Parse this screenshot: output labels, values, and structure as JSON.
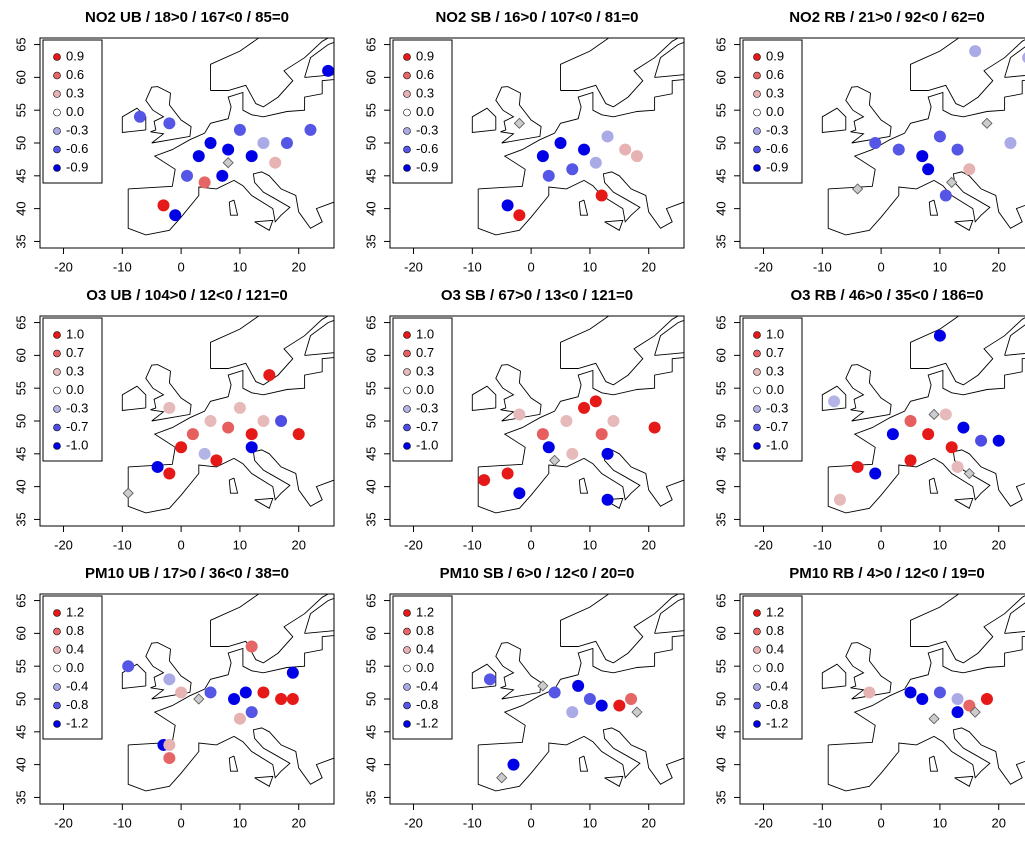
{
  "panels": [
    {
      "title": "NO2 UB / 18>0 / 167<0 / 85=0",
      "xlim": [
        -24,
        26
      ],
      "ylim": [
        34,
        66
      ],
      "xticks": [
        -20,
        -10,
        0,
        10,
        20
      ],
      "yticks": [
        35,
        40,
        45,
        50,
        55,
        60,
        65
      ],
      "legend": [
        0.9,
        0.6,
        0.3,
        {
          "value": 0,
          "label": "0.0"
        },
        -0.3,
        -0.6,
        -0.9
      ],
      "lon": [
        -3,
        -1,
        1,
        3,
        5,
        8,
        10,
        12,
        14,
        16,
        4,
        -2,
        -7,
        7,
        25,
        18,
        8,
        22
      ],
      "lat": [
        40.5,
        39,
        45,
        48,
        50,
        49,
        52,
        48,
        50,
        47,
        44,
        53,
        54,
        45,
        61,
        50,
        47,
        52
      ],
      "values": [
        0.9,
        -0.9,
        -0.6,
        -0.9,
        -0.9,
        -0.9,
        -0.6,
        -0.9,
        -0.3,
        0.3,
        0.6,
        -0.6,
        -0.6,
        -0.9,
        -0.9,
        -0.6,
        0,
        -0.6
      ]
    },
    {
      "title": "NO2 SB / 16>0 / 107<0 / 81=0",
      "xlim": [
        -24,
        26
      ],
      "ylim": [
        34,
        66
      ],
      "xticks": [
        -20,
        -10,
        0,
        10,
        20
      ],
      "yticks": [
        35,
        40,
        45,
        50,
        55,
        60,
        65
      ],
      "legend": [
        0.9,
        0.6,
        0.3,
        {
          "value": 0,
          "label": "0.0"
        },
        -0.3,
        -0.6,
        -0.9
      ],
      "lon": [
        -4,
        -2,
        12,
        2,
        5,
        9,
        13,
        16,
        7,
        3,
        11,
        -2,
        18
      ],
      "lat": [
        40.5,
        39,
        42,
        48,
        50,
        49,
        51,
        49,
        46,
        45,
        47,
        53,
        48
      ],
      "values": [
        -0.9,
        0.9,
        0.9,
        -0.9,
        -0.9,
        -0.9,
        -0.3,
        0.3,
        -0.6,
        -0.6,
        -0.3,
        0,
        0.3
      ]
    },
    {
      "title": "NO2 RB / 21>0 / 92<0 / 62=0",
      "xlim": [
        -24,
        26
      ],
      "ylim": [
        34,
        66
      ],
      "xticks": [
        -20,
        -10,
        0,
        10,
        20
      ],
      "yticks": [
        35,
        40,
        45,
        50,
        55,
        60,
        65
      ],
      "legend": [
        0.9,
        0.6,
        0.3,
        {
          "value": 0,
          "label": "0.0"
        },
        -0.3,
        -0.6,
        -0.9
      ],
      "lon": [
        -4,
        3,
        7,
        10,
        13,
        15,
        8,
        -1,
        18,
        22,
        12,
        16,
        25,
        11
      ],
      "lat": [
        43,
        49,
        48,
        51,
        49,
        46,
        46,
        50,
        53,
        50,
        44,
        64,
        63,
        42
      ],
      "values": [
        0,
        -0.6,
        -0.9,
        -0.6,
        -0.6,
        0.3,
        -0.9,
        -0.6,
        0,
        -0.3,
        0,
        -0.3,
        -0.3,
        -0.6
      ]
    },
    {
      "title": "O3 UB / 104>0 / 12<0 / 121=0",
      "xlim": [
        -24,
        26
      ],
      "ylim": [
        34,
        66
      ],
      "xticks": [
        -20,
        -10,
        0,
        10,
        20
      ],
      "yticks": [
        35,
        40,
        45,
        50,
        55,
        60,
        65
      ],
      "legend": [
        {
          "value": 1,
          "label": "1.0"
        },
        0.7,
        0.3,
        {
          "value": 0,
          "label": "0.0"
        },
        -0.3,
        -0.7,
        {
          "value": -1,
          "label": "-1.0"
        }
      ],
      "lon": [
        0,
        2,
        5,
        8,
        10,
        12,
        14,
        6,
        -2,
        -4,
        12,
        17,
        20,
        -2,
        -9,
        4,
        15
      ],
      "lat": [
        46,
        48,
        50,
        49,
        52,
        48,
        50,
        44,
        42,
        43,
        46,
        50,
        48,
        52,
        39,
        45,
        57
      ],
      "values": [
        1,
        0.7,
        0.3,
        0.7,
        0.3,
        1,
        0.3,
        1,
        1,
        -1,
        -1,
        -0.7,
        1,
        0.3,
        0,
        -0.3,
        1
      ]
    },
    {
      "title": "O3 SB / 67>0 / 13<0 / 121=0",
      "xlim": [
        -24,
        26
      ],
      "ylim": [
        34,
        66
      ],
      "xticks": [
        -20,
        -10,
        0,
        10,
        20
      ],
      "yticks": [
        35,
        40,
        45,
        50,
        55,
        60,
        65
      ],
      "legend": [
        {
          "value": 1,
          "label": "1.0"
        },
        0.7,
        0.3,
        {
          "value": 0,
          "label": "0.0"
        },
        -0.3,
        -0.7,
        {
          "value": -1,
          "label": "-1.0"
        }
      ],
      "lon": [
        -8,
        -4,
        -2,
        2,
        6,
        9,
        12,
        14,
        3,
        7,
        13,
        21,
        13,
        11,
        -2,
        4
      ],
      "lat": [
        41,
        42,
        39,
        48,
        50,
        52,
        48,
        50,
        46,
        45,
        45,
        49,
        38,
        53,
        51,
        44
      ],
      "values": [
        1,
        1,
        -1,
        0.7,
        0.3,
        1,
        0.7,
        0.3,
        -1,
        0.3,
        -1,
        1,
        -1,
        1,
        0.3,
        0
      ]
    },
    {
      "title": "O3 RB / 46>0 / 35<0 / 186=0",
      "xlim": [
        -24,
        26
      ],
      "ylim": [
        34,
        66
      ],
      "xticks": [
        -20,
        -10,
        0,
        10,
        20
      ],
      "yticks": [
        35,
        40,
        45,
        50,
        55,
        60,
        65
      ],
      "legend": [
        {
          "value": 1,
          "label": "1.0"
        },
        0.7,
        0.3,
        {
          "value": 0,
          "label": "0.0"
        },
        -0.3,
        -0.7,
        {
          "value": -1,
          "label": "-1.0"
        }
      ],
      "lon": [
        -7,
        -4,
        -1,
        2,
        5,
        8,
        11,
        14,
        12,
        17,
        20,
        10,
        13,
        5,
        9,
        15,
        -8
      ],
      "lat": [
        38,
        43,
        42,
        48,
        50,
        48,
        51,
        49,
        46,
        47,
        47,
        63,
        43,
        44,
        51,
        42,
        53
      ],
      "values": [
        0.3,
        1,
        -1,
        -1,
        0.7,
        1,
        0.3,
        -1,
        1,
        -0.7,
        -1,
        -1,
        0.3,
        1,
        0,
        0,
        -0.3
      ]
    },
    {
      "title": "PM10 UB / 17>0 / 36<0 / 38=0",
      "xlim": [
        -24,
        26
      ],
      "ylim": [
        34,
        66
      ],
      "xticks": [
        -20,
        -10,
        0,
        10,
        20
      ],
      "yticks": [
        35,
        40,
        45,
        50,
        55,
        60,
        65
      ],
      "legend": [
        1.2,
        0.8,
        0.4,
        {
          "value": 0,
          "label": "0.0"
        },
        -0.4,
        -0.8,
        -1.2
      ],
      "lon": [
        -3,
        -2,
        -2,
        -9,
        -2,
        0,
        5,
        9,
        11,
        12,
        14,
        17,
        19,
        12,
        19,
        10,
        3
      ],
      "lat": [
        43,
        41,
        43,
        55,
        53,
        51,
        51,
        50,
        51,
        48,
        51,
        50,
        50,
        58,
        54,
        47,
        50
      ],
      "values": [
        -1.2,
        0.8,
        0.4,
        -0.8,
        -0.4,
        0.4,
        -0.8,
        -1.2,
        -1.2,
        -0.8,
        1.2,
        1.2,
        1.2,
        0.8,
        -1.2,
        0.4,
        0
      ]
    },
    {
      "title": "PM10 SB / 6>0 / 12<0 / 20=0",
      "xlim": [
        -24,
        26
      ],
      "ylim": [
        34,
        66
      ],
      "xticks": [
        -20,
        -10,
        0,
        10,
        20
      ],
      "yticks": [
        35,
        40,
        45,
        50,
        55,
        60,
        65
      ],
      "legend": [
        1.2,
        0.8,
        0.4,
        {
          "value": 0,
          "label": "0.0"
        },
        -0.4,
        -0.8,
        -1.2
      ],
      "lon": [
        -7,
        -3,
        4,
        8,
        10,
        12,
        15,
        17,
        7,
        2,
        18,
        -5
      ],
      "lat": [
        53,
        40,
        51,
        52,
        50,
        49,
        49,
        50,
        48,
        52,
        48,
        38
      ],
      "values": [
        -0.8,
        -1.2,
        -0.8,
        -1.2,
        -0.8,
        -1.2,
        1.2,
        0.8,
        -0.4,
        0,
        0,
        0
      ]
    },
    {
      "title": "PM10 RB / 4>0 / 12<0 / 19=0",
      "xlim": [
        -24,
        26
      ],
      "ylim": [
        34,
        66
      ],
      "xticks": [
        -20,
        -10,
        0,
        10,
        20
      ],
      "yticks": [
        35,
        40,
        45,
        50,
        55,
        60,
        65
      ],
      "legend": [
        1.2,
        0.8,
        0.4,
        {
          "value": 0,
          "label": "0.0"
        },
        -0.4,
        -0.8,
        -1.2
      ],
      "lon": [
        -2,
        5,
        7,
        10,
        13,
        15,
        18,
        13,
        9,
        16
      ],
      "lat": [
        51,
        51,
        50,
        51,
        50,
        49,
        50,
        48,
        47,
        48
      ],
      "values": [
        0.4,
        -1.2,
        -1.2,
        -0.8,
        -0.4,
        0.8,
        1.2,
        -1.2,
        0,
        0
      ]
    }
  ]
}
